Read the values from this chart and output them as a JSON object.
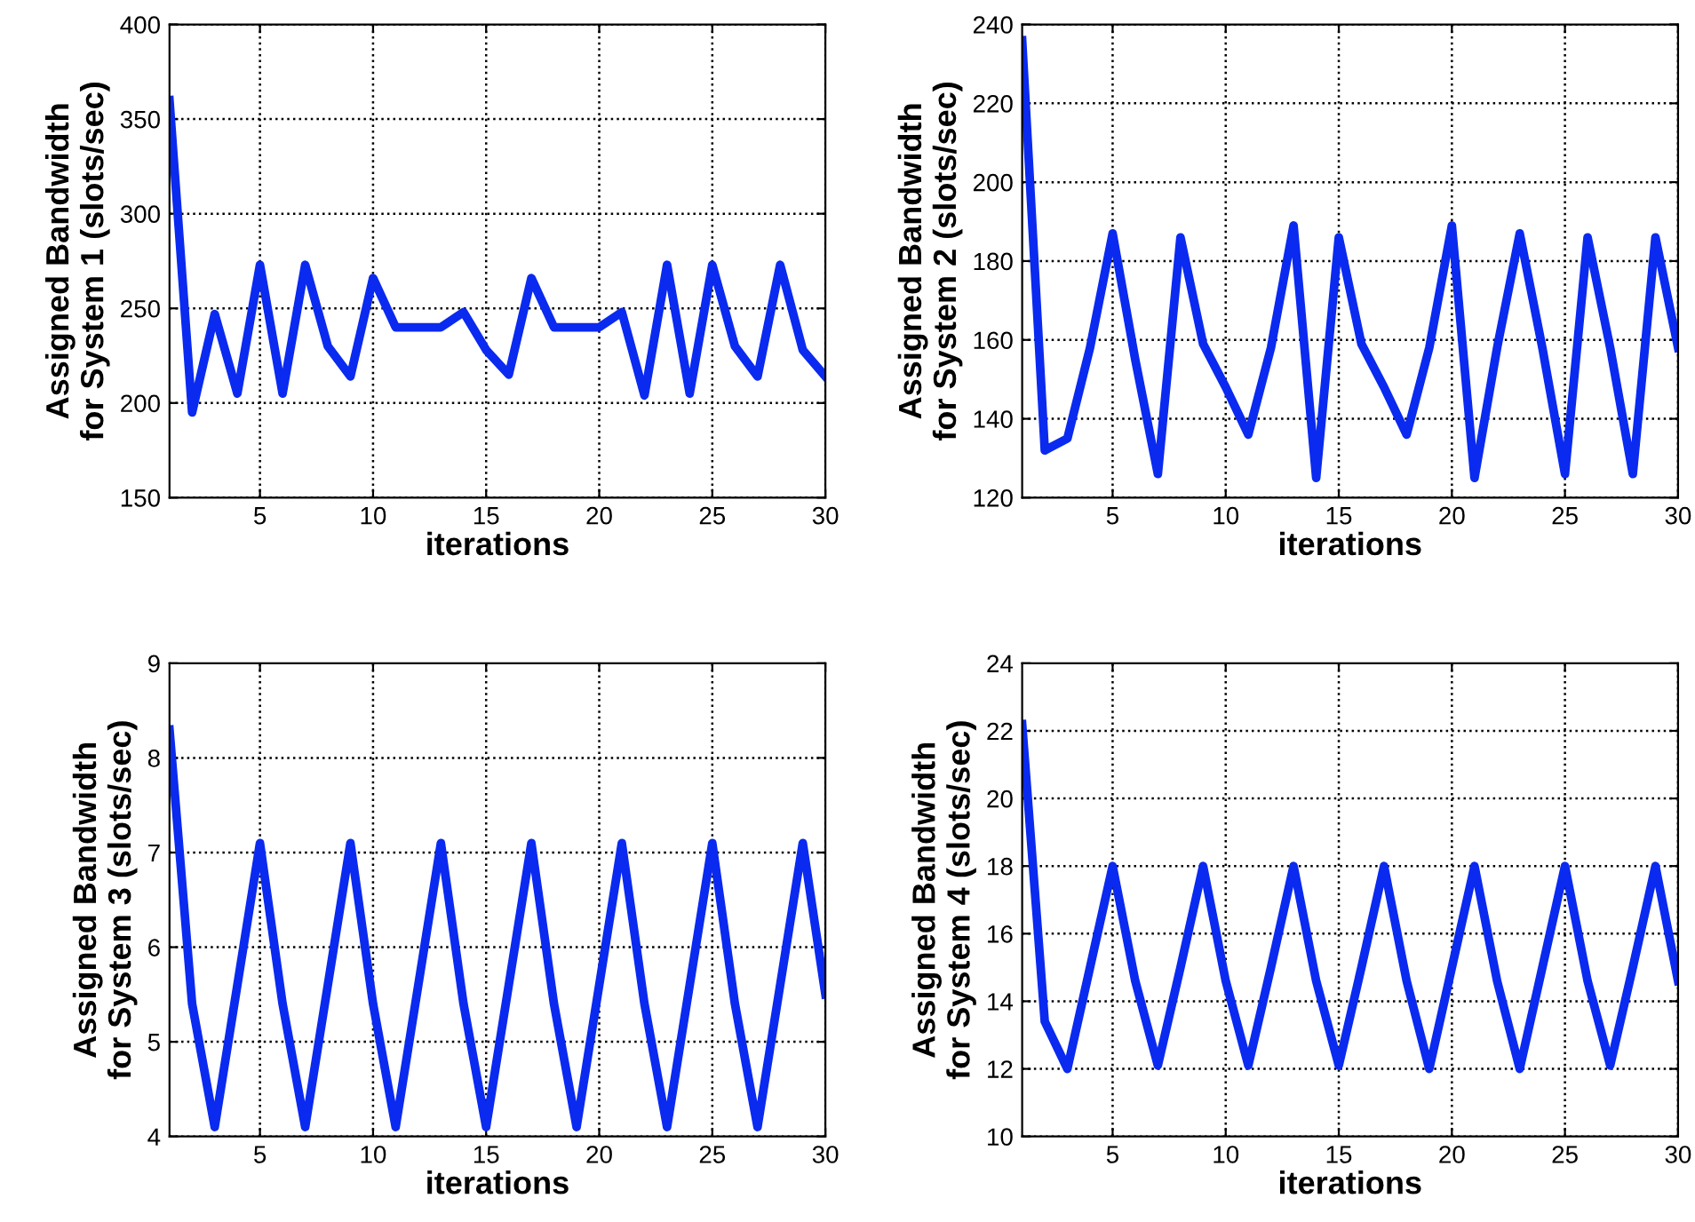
{
  "chart_data": [
    {
      "type": "line",
      "xlabel": "iterations",
      "ylabel": "Assigned Bandwidth\nfor System 1 (slots/sec)",
      "xlim": [
        1,
        30
      ],
      "xticks": [
        5,
        10,
        15,
        20,
        25,
        30
      ],
      "ylim": [
        150,
        400
      ],
      "yticks": [
        150,
        200,
        250,
        300,
        350,
        400
      ],
      "grid": true,
      "line_style": "solid",
      "x": [
        1,
        2,
        3,
        4,
        5,
        6,
        7,
        8,
        9,
        10,
        11,
        12,
        13,
        14,
        15,
        16,
        17,
        18,
        19,
        20,
        21,
        22,
        23,
        24,
        25,
        26,
        27,
        28,
        29,
        30
      ],
      "series": [
        {
          "color": "#0a2af0",
          "values": [
            360,
            195,
            247,
            205,
            273,
            205,
            273,
            230,
            214,
            266,
            240,
            240,
            240,
            248,
            228,
            215,
            266,
            240,
            240,
            240,
            248,
            204,
            273,
            205,
            273,
            230,
            214,
            273,
            228,
            214
          ]
        }
      ]
    },
    {
      "type": "line",
      "xlabel": "iterations",
      "ylabel": "Assigned Bandwidth\nfor System 2 (slots/sec)",
      "xlim": [
        1,
        30
      ],
      "xticks": [
        5,
        10,
        15,
        20,
        25,
        30
      ],
      "ylim": [
        120,
        240
      ],
      "yticks": [
        120,
        140,
        160,
        180,
        200,
        220,
        240
      ],
      "grid": true,
      "line_style": "solid",
      "x": [
        1,
        2,
        3,
        4,
        5,
        6,
        7,
        8,
        9,
        10,
        11,
        12,
        13,
        14,
        15,
        16,
        17,
        18,
        19,
        20,
        21,
        22,
        23,
        24,
        25,
        26,
        27,
        28,
        29,
        30
      ],
      "series": [
        {
          "color": "#0a2af0",
          "values": [
            236,
            132,
            135,
            158,
            187,
            155,
            126,
            186,
            159,
            148,
            136,
            158,
            189,
            125,
            186,
            159,
            148,
            136,
            158,
            189,
            125,
            158,
            187,
            158,
            126,
            186,
            158,
            126,
            186,
            158
          ]
        }
      ]
    },
    {
      "type": "line",
      "xlabel": "iterations",
      "ylabel": "Assigned Bandwidth\nfor System 3 (slots/sec)",
      "xlim": [
        1,
        30
      ],
      "xticks": [
        5,
        10,
        15,
        20,
        25,
        30
      ],
      "ylim": [
        4,
        9
      ],
      "yticks": [
        4,
        5,
        6,
        7,
        8,
        9
      ],
      "grid": true,
      "line_style": "solid",
      "x": [
        1,
        2,
        3,
        4,
        5,
        6,
        7,
        8,
        9,
        10,
        11,
        12,
        13,
        14,
        15,
        16,
        17,
        18,
        19,
        20,
        21,
        22,
        23,
        24,
        25,
        26,
        27,
        28,
        29,
        30
      ],
      "series": [
        {
          "color": "#0a2af0",
          "values": [
            8.3,
            5.4,
            4.1,
            5.6,
            7.1,
            5.4,
            4.1,
            5.6,
            7.1,
            5.4,
            4.1,
            5.6,
            7.1,
            5.4,
            4.1,
            5.6,
            7.1,
            5.4,
            4.1,
            5.6,
            7.1,
            5.4,
            4.1,
            5.6,
            7.1,
            5.4,
            4.1,
            5.6,
            7.1,
            5.5
          ]
        }
      ]
    },
    {
      "type": "line",
      "xlabel": "iterations",
      "ylabel": "Assigned Bandwidth\nfor System 4 (slots/sec)",
      "xlim": [
        1,
        30
      ],
      "xticks": [
        5,
        10,
        15,
        20,
        25,
        30
      ],
      "ylim": [
        10,
        24
      ],
      "yticks": [
        10,
        12,
        14,
        16,
        18,
        20,
        22,
        24
      ],
      "grid": true,
      "line_style": "solid",
      "x": [
        1,
        2,
        3,
        4,
        5,
        6,
        7,
        8,
        9,
        10,
        11,
        12,
        13,
        14,
        15,
        16,
        17,
        18,
        19,
        20,
        21,
        22,
        23,
        24,
        25,
        26,
        27,
        28,
        29,
        30
      ],
      "series": [
        {
          "color": "#0a2af0",
          "values": [
            22.2,
            13.4,
            12.0,
            15.0,
            18.0,
            14.6,
            12.1,
            15.0,
            18.0,
            14.6,
            12.1,
            15.0,
            18.0,
            14.6,
            12.1,
            15.0,
            18.0,
            14.6,
            12.0,
            15.0,
            18.0,
            14.6,
            12.0,
            15.0,
            18.0,
            14.6,
            12.1,
            15.0,
            18.0,
            14.6
          ]
        }
      ]
    }
  ]
}
